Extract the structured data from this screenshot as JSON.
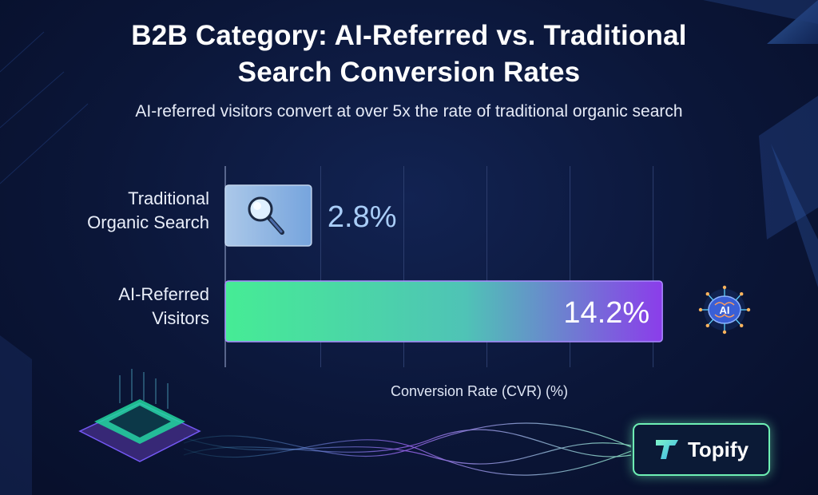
{
  "title_line1": "B2B Category: AI-Referred vs. Traditional",
  "title_line2": "Search Conversion Rates",
  "subtitle": "AI-referred visitors convert at over 5x the rate of traditional organic search",
  "brand": {
    "name": "Topify",
    "accent": "#6ef0b4"
  },
  "icons": {
    "traditional": "magnifier-icon",
    "ai": "ai-brain-icon"
  },
  "chart_data": {
    "type": "bar",
    "orientation": "horizontal",
    "categories": [
      "Traditional Organic Search",
      "AI-Referred Visitors"
    ],
    "category_label_lines": [
      [
        "Traditional",
        "Organic Search"
      ],
      [
        "AI-Referred",
        "Visitors"
      ]
    ],
    "values": [
      2.8,
      14.2
    ],
    "value_labels": [
      "2.8%",
      "14.2%"
    ],
    "xlabel": "Conversion Rate (CVR) (%)",
    "xlim": [
      0,
      15
    ],
    "grid": true,
    "bar_colors": [
      "#9cc4f2",
      "#46ec95",
      "#8b3dea"
    ]
  }
}
